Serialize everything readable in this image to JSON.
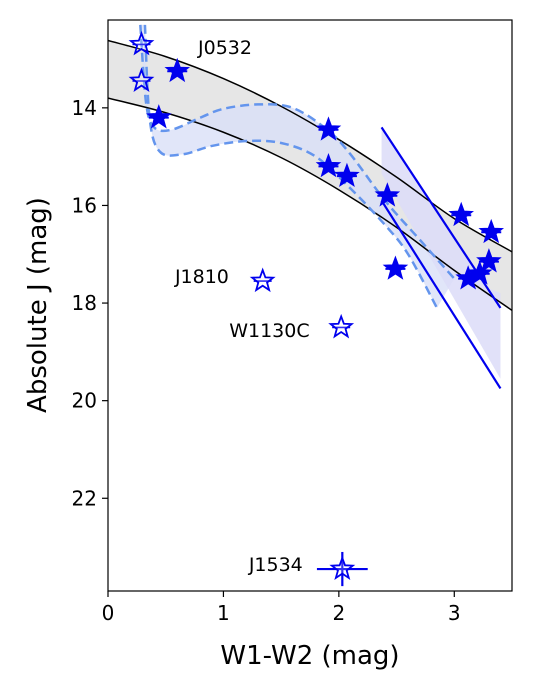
{
  "chart_data": {
    "type": "scatter",
    "xlabel": "W1-W2 (mag)",
    "ylabel": "Absolute J (mag)",
    "xlim": [
      0,
      3.5
    ],
    "ylim": [
      23.9,
      12.2
    ],
    "y_inverted": true,
    "xticks": [
      0,
      1,
      2,
      3
    ],
    "yticks": [
      14,
      16,
      18,
      20,
      22
    ],
    "grid": false,
    "legend": "none",
    "colors": {
      "points": "#0000ee",
      "dashed": "#6495ed",
      "band_fill": "#e3e3e3",
      "dashed_band_fill": "#d9e0f7",
      "line_band_fill": "#dcdcf8",
      "band_edge": "#000000"
    },
    "filled_stars": [
      {
        "x": 0.6,
        "y": 13.25
      },
      {
        "x": 0.44,
        "y": 14.2
      },
      {
        "x": 1.91,
        "y": 14.45
      },
      {
        "x": 1.91,
        "y": 15.2
      },
      {
        "x": 2.07,
        "y": 15.4
      },
      {
        "x": 2.42,
        "y": 15.8
      },
      {
        "x": 3.06,
        "y": 16.2
      },
      {
        "x": 3.32,
        "y": 16.55
      },
      {
        "x": 2.49,
        "y": 17.3
      },
      {
        "x": 3.12,
        "y": 17.5
      },
      {
        "x": 3.22,
        "y": 17.4
      },
      {
        "x": 3.3,
        "y": 17.15
      }
    ],
    "open_stars": [
      {
        "x": 0.29,
        "y": 12.7
      },
      {
        "x": 0.29,
        "y": 13.45
      },
      {
        "x": 1.34,
        "y": 17.55
      },
      {
        "x": 2.02,
        "y": 18.5
      },
      {
        "x": 2.03,
        "y": 23.45
      }
    ],
    "errorbars": [
      {
        "x": 2.03,
        "y": 23.45,
        "xerr": 0.22,
        "yerr": 0.35
      }
    ],
    "annotations": [
      {
        "text": "J0532",
        "x": 0.78,
        "y": 12.75
      },
      {
        "text": "J1810",
        "x": 0.58,
        "y": 17.45
      },
      {
        "text": "W1130C",
        "x": 1.05,
        "y": 18.55
      },
      {
        "text": "J1534",
        "x": 1.22,
        "y": 23.35
      }
    ],
    "polynomial_band": {
      "upper": [
        [
          0,
          12.62
        ],
        [
          0.5,
          12.95
        ],
        [
          1.0,
          13.4
        ],
        [
          1.5,
          13.97
        ],
        [
          2.0,
          14.65
        ],
        [
          2.5,
          15.42
        ],
        [
          3.0,
          16.27
        ],
        [
          3.5,
          16.95
        ]
      ],
      "lower": [
        [
          0,
          13.8
        ],
        [
          0.5,
          14.1
        ],
        [
          1.0,
          14.5
        ],
        [
          1.5,
          15.02
        ],
        [
          2.0,
          15.68
        ],
        [
          2.5,
          16.45
        ],
        [
          3.0,
          17.33
        ],
        [
          3.5,
          18.15
        ]
      ]
    },
    "dashed_band": {
      "upper": [
        [
          0.28,
          12.3
        ],
        [
          0.33,
          13.9
        ],
        [
          0.4,
          14.4
        ],
        [
          0.55,
          14.45
        ],
        [
          0.8,
          14.2
        ],
        [
          1.0,
          14.02
        ],
        [
          1.3,
          13.93
        ],
        [
          1.6,
          14.0
        ],
        [
          1.9,
          14.45
        ],
        [
          2.1,
          14.95
        ],
        [
          2.4,
          15.9
        ],
        [
          2.7,
          16.7
        ],
        [
          3.0,
          17.5
        ]
      ],
      "lower": [
        [
          0.32,
          12.3
        ],
        [
          0.36,
          14.2
        ],
        [
          0.45,
          14.9
        ],
        [
          0.65,
          14.95
        ],
        [
          0.9,
          14.78
        ],
        [
          1.2,
          14.68
        ],
        [
          1.5,
          14.72
        ],
        [
          1.8,
          15.0
        ],
        [
          2.1,
          15.65
        ],
        [
          2.4,
          16.4
        ],
        [
          2.6,
          17.0
        ],
        [
          2.85,
          18.1
        ]
      ]
    },
    "linear_band": {
      "upper": [
        [
          2.37,
          14.4
        ],
        [
          3.4,
          18.1
        ]
      ],
      "lower": [
        [
          2.37,
          15.9
        ],
        [
          3.4,
          19.75
        ]
      ],
      "fill_polygon": [
        [
          2.37,
          14.4
        ],
        [
          2.55,
          15.05
        ],
        [
          3.28,
          17.68
        ],
        [
          3.4,
          17.8
        ],
        [
          3.4,
          19.55
        ],
        [
          2.37,
          15.35
        ]
      ]
    }
  }
}
